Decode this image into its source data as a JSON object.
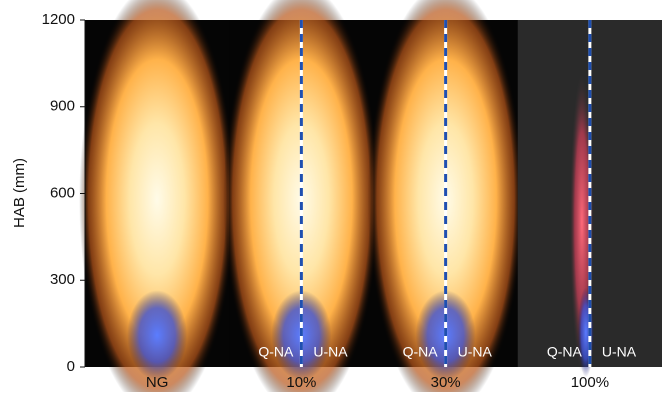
{
  "chart_data": {
    "type": "flame-panels",
    "ylabel": "HAB (mm)",
    "categories": [
      "NG",
      "10%",
      "30%",
      "100%"
    ],
    "ylim": [
      0,
      1200
    ],
    "yticks": [
      0,
      300,
      600,
      900,
      1200
    ],
    "split_labels": [
      "Q-NA",
      "U-NA"
    ]
  }
}
